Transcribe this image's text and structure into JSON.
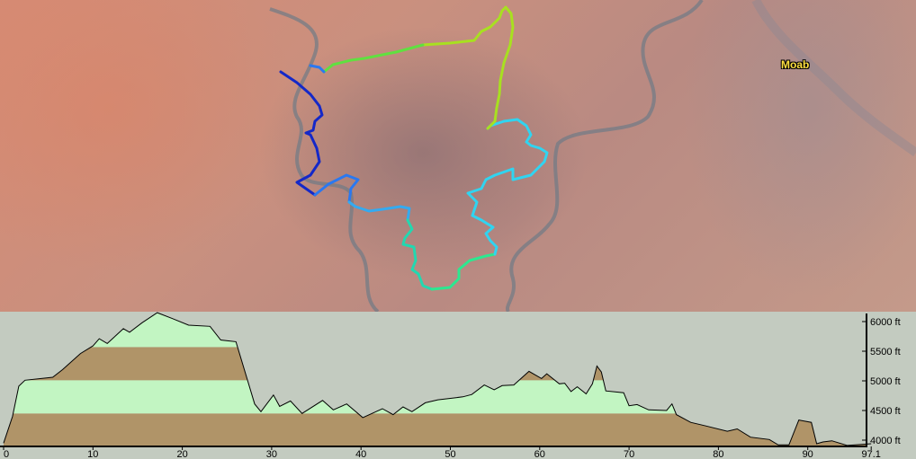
{
  "map": {
    "place_labels": [
      {
        "name": "Moab"
      }
    ],
    "route_colors": [
      "#1428c8",
      "#2a78f0",
      "#34aaf0",
      "#22d8b0",
      "#2ce890",
      "#30d4f0",
      "#a8e020",
      "#60e040"
    ]
  },
  "chart_data": {
    "type": "area",
    "title": "",
    "xlabel": "",
    "ylabel": "",
    "xlim": [
      0,
      97.1
    ],
    "ylim": [
      3900,
      6150
    ],
    "x_ticks": [
      "0",
      "10",
      "20",
      "30",
      "40",
      "50",
      "60",
      "70",
      "80",
      "90",
      "97.1"
    ],
    "x_tick_values": [
      0,
      10,
      20,
      30,
      40,
      50,
      60,
      70,
      80,
      90,
      97.1
    ],
    "y_ticks": [
      "6000 ft",
      "5500 ft",
      "5000 ft",
      "4500 ft",
      "4000 ft"
    ],
    "y_tick_values": [
      6000,
      5500,
      5000,
      4500,
      4000
    ],
    "band_edges_ft": [
      4450,
      5010,
      5570
    ],
    "band_colors": [
      "#b09468",
      "#c2f5c2"
    ],
    "grid": false,
    "distance": [
      0,
      1.0,
      1.7,
      2.4,
      4.8,
      5.5,
      6.6,
      8.6,
      10,
      10.7,
      11.6,
      13.4,
      14.1,
      15.5,
      17.2,
      18.9,
      20.7,
      23.1,
      24.3,
      26.0,
      27.2,
      28.1,
      28.8,
      30.2,
      30.9,
      32.1,
      33.4,
      35.7,
      36.9,
      38.4,
      40.2,
      42.4,
      43.6,
      44.7,
      45.7,
      47.2,
      48.6,
      51.4,
      52.4,
      53.8,
      54.9,
      55.8,
      57.1,
      58.8,
      60.2,
      60.8,
      62.2,
      62.8,
      63.5,
      64.2,
      65.2,
      65.9,
      66.4,
      66.9,
      67.4,
      69.4,
      70.0,
      70.9,
      72.2,
      74.2,
      74.8,
      75.3,
      76.9,
      78.6,
      81.0,
      82.1,
      83.6,
      85.7,
      86.7,
      87.9,
      89.0,
      90.4,
      91.0,
      91.7,
      92.7,
      94.4,
      97.1
    ],
    "elevation_ft": [
      3950,
      4400,
      4910,
      5010,
      5050,
      5060,
      5190,
      5460,
      5590,
      5710,
      5630,
      5880,
      5820,
      5980,
      6150,
      6050,
      5940,
      5920,
      5690,
      5660,
      5060,
      4610,
      4480,
      4760,
      4570,
      4660,
      4450,
      4670,
      4510,
      4610,
      4380,
      4530,
      4430,
      4560,
      4480,
      4630,
      4680,
      4730,
      4770,
      4930,
      4850,
      4920,
      4930,
      5160,
      5040,
      5120,
      4950,
      4960,
      4820,
      4900,
      4780,
      4950,
      5250,
      5150,
      4830,
      4800,
      4580,
      4600,
      4510,
      4500,
      4610,
      4430,
      4300,
      4240,
      4150,
      4190,
      4050,
      4010,
      3920,
      3920,
      4340,
      4300,
      3940,
      3970,
      3990,
      3910,
      3940
    ]
  }
}
